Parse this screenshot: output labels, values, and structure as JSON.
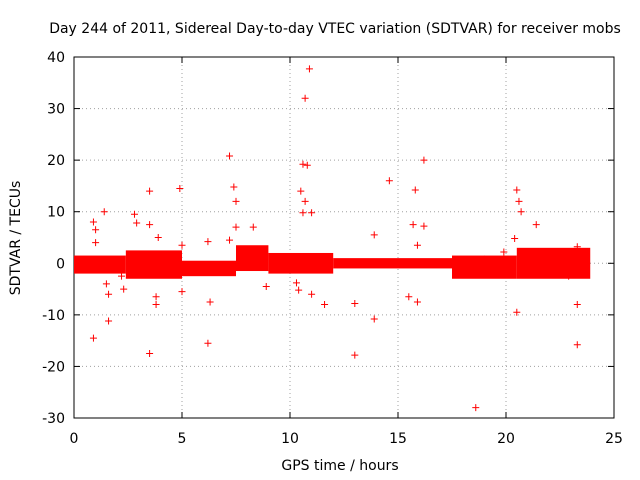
{
  "chart_data": {
    "type": "scatter",
    "title": "Day 244 of 2011, Sidereal Day-to-day VTEC variation (SDTVAR) for receiver mobs",
    "xlabel": "GPS time / hours",
    "ylabel": "SDTVAR / TECUs",
    "xlim": [
      0,
      25
    ],
    "ylim": [
      -30,
      40
    ],
    "xticks": [
      0,
      5,
      10,
      15,
      20,
      25
    ],
    "yticks": [
      -30,
      -20,
      -10,
      0,
      10,
      20,
      30,
      40
    ],
    "xtick_labels": [
      "0",
      "5",
      "10",
      "15",
      "20",
      "25"
    ],
    "ytick_labels": [
      "-30",
      "-20",
      "-10",
      "0",
      "10",
      "20",
      "30",
      "40"
    ],
    "grid": true,
    "marker": "+",
    "color": "#ff0000",
    "bands": [
      {
        "x_start": 0.0,
        "x_end": 2.4,
        "low": -2.0,
        "high": 1.5
      },
      {
        "x_start": 2.4,
        "x_end": 5.0,
        "low": -3.0,
        "high": 2.5
      },
      {
        "x_start": 5.0,
        "x_end": 7.5,
        "low": -2.5,
        "high": 0.5
      },
      {
        "x_start": 7.5,
        "x_end": 9.0,
        "low": -1.5,
        "high": 3.5
      },
      {
        "x_start": 9.0,
        "x_end": 12.0,
        "low": -2.0,
        "high": 2.0
      },
      {
        "x_start": 12.0,
        "x_end": 17.5,
        "low": -1.0,
        "high": 1.0
      },
      {
        "x_start": 17.5,
        "x_end": 20.5,
        "low": -3.0,
        "high": 1.5
      },
      {
        "x_start": 20.5,
        "x_end": 23.9,
        "low": -3.0,
        "high": 3.0
      }
    ],
    "series": [
      {
        "name": "SDTVAR",
        "points": [
          [
            0.9,
            8.0
          ],
          [
            0.9,
            -14.5
          ],
          [
            1.0,
            6.5
          ],
          [
            1.0,
            4.0
          ],
          [
            1.4,
            10.0
          ],
          [
            1.5,
            -4.0
          ],
          [
            1.6,
            -6.0
          ],
          [
            1.6,
            -11.2
          ],
          [
            2.2,
            -2.5
          ],
          [
            2.3,
            -5.0
          ],
          [
            2.8,
            9.5
          ],
          [
            2.9,
            7.8
          ],
          [
            3.5,
            14.0
          ],
          [
            3.5,
            7.5
          ],
          [
            3.5,
            -17.5
          ],
          [
            3.8,
            -8.0
          ],
          [
            3.8,
            -6.5
          ],
          [
            3.9,
            5.0
          ],
          [
            4.9,
            14.5
          ],
          [
            5.0,
            3.5
          ],
          [
            5.0,
            -5.5
          ],
          [
            6.2,
            4.2
          ],
          [
            6.2,
            -15.5
          ],
          [
            6.3,
            -7.5
          ],
          [
            7.2,
            20.8
          ],
          [
            7.2,
            4.5
          ],
          [
            7.4,
            14.8
          ],
          [
            7.5,
            12.0
          ],
          [
            7.5,
            7.0
          ],
          [
            8.3,
            7.0
          ],
          [
            8.9,
            -4.5
          ],
          [
            10.3,
            -3.8
          ],
          [
            10.4,
            -5.2
          ],
          [
            10.5,
            14.0
          ],
          [
            10.6,
            19.2
          ],
          [
            10.6,
            9.8
          ],
          [
            10.7,
            32.0
          ],
          [
            10.7,
            12.0
          ],
          [
            10.8,
            19.0
          ],
          [
            10.9,
            37.7
          ],
          [
            11.0,
            9.8
          ],
          [
            11.0,
            -6.0
          ],
          [
            11.6,
            -8.0
          ],
          [
            13.0,
            -7.8
          ],
          [
            13.0,
            -17.8
          ],
          [
            13.9,
            5.5
          ],
          [
            13.9,
            -10.8
          ],
          [
            14.6,
            16.0
          ],
          [
            15.5,
            -6.5
          ],
          [
            15.7,
            7.5
          ],
          [
            15.8,
            14.2
          ],
          [
            15.9,
            3.5
          ],
          [
            15.9,
            -7.5
          ],
          [
            16.2,
            20.0
          ],
          [
            16.2,
            7.2
          ],
          [
            18.6,
            -28.0
          ],
          [
            19.0,
            0.8
          ],
          [
            19.9,
            2.2
          ],
          [
            20.4,
            4.8
          ],
          [
            20.5,
            14.2
          ],
          [
            20.5,
            -9.5
          ],
          [
            20.6,
            12.0
          ],
          [
            20.7,
            10.0
          ],
          [
            21.4,
            7.5
          ],
          [
            23.3,
            3.2
          ],
          [
            23.3,
            -8.0
          ],
          [
            23.3,
            -15.8
          ],
          [
            22.9,
            -2.5
          ]
        ]
      }
    ]
  }
}
